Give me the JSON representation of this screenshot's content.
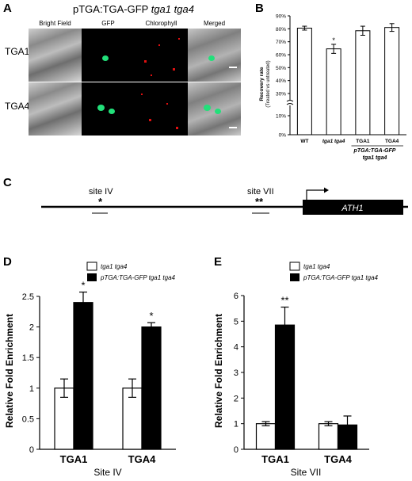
{
  "panelA": {
    "letter": "A",
    "title_prefix": "pTGA:TGA-GFP ",
    "title_italic": "tga1 tga4",
    "columns": [
      "Bright Field",
      "GFP",
      "Chlorophyll",
      "Merged"
    ],
    "rows": [
      "TGA1",
      "TGA4"
    ]
  },
  "panelB": {
    "letter": "B",
    "chart_data": {
      "type": "bar",
      "categories": [
        "WT",
        "tga1 tga4",
        "TGA1",
        "TGA4"
      ],
      "group_label_line1": "pTGA:TGA-GFP",
      "group_label_line2": "tga1 tga4",
      "values": [
        80.5,
        64.5,
        78.5,
        81
      ],
      "errors": [
        1.5,
        3.5,
        3.5,
        3
      ],
      "significance": [
        "",
        "*",
        "",
        ""
      ],
      "ylabel": "Recovery rate",
      "ylabel2": "(Treated vs untreated)",
      "yticks": [
        "0%",
        "10%",
        "30%",
        "40%",
        "50%",
        "60%",
        "70%",
        "80%",
        "90%"
      ],
      "ylim": [
        0,
        90
      ],
      "axis_break": true,
      "bar_color": "#ffffff"
    }
  },
  "panelC": {
    "letter": "C",
    "site4_label": "site IV",
    "site4_star": "*",
    "site7_label": "site VII",
    "site7_star": "**",
    "gene": "ATH1"
  },
  "panelD": {
    "letter": "D",
    "legend": [
      "tga1 tga4",
      "pTGA:TGA-GFP tga1 tga4"
    ],
    "chart_data": {
      "type": "bar",
      "categories": [
        "TGA1",
        "TGA4"
      ],
      "series": [
        {
          "name": "tga1 tga4",
          "values": [
            1.0,
            1.0
          ],
          "errors": [
            0.15,
            0.15
          ],
          "color": "#ffffff"
        },
        {
          "name": "pTGA:TGA-GFP tga1 tga4",
          "values": [
            2.4,
            2.0
          ],
          "errors": [
            0.17,
            0.07
          ],
          "color": "#000000"
        }
      ],
      "significance": [
        "*",
        "*"
      ],
      "ylabel": "Relative Fold Enrichment",
      "xlabel": "Site IV",
      "yticks": [
        "0",
        "0.5",
        "1",
        "1.5",
        "2",
        "2.5"
      ],
      "ylim": [
        0,
        2.5
      ]
    }
  },
  "panelE": {
    "letter": "E",
    "legend": [
      "tga1 tga4",
      "pTGA:TGA-GFP tga1 tga4"
    ],
    "chart_data": {
      "type": "bar",
      "categories": [
        "TGA1",
        "TGA4"
      ],
      "series": [
        {
          "name": "tga1 tga4",
          "values": [
            1.0,
            1.0
          ],
          "errors": [
            0.08,
            0.08
          ],
          "color": "#ffffff"
        },
        {
          "name": "pTGA:TGA-GFP tga1 tga4",
          "values": [
            4.85,
            0.95
          ],
          "errors": [
            0.7,
            0.35
          ],
          "color": "#000000"
        }
      ],
      "significance": [
        "**",
        ""
      ],
      "ylabel": "Relative Fold Enrichment",
      "xlabel": "Site VII",
      "yticks": [
        "0",
        "1",
        "2",
        "3",
        "4",
        "5",
        "6"
      ],
      "ylim": [
        0,
        6
      ]
    }
  }
}
